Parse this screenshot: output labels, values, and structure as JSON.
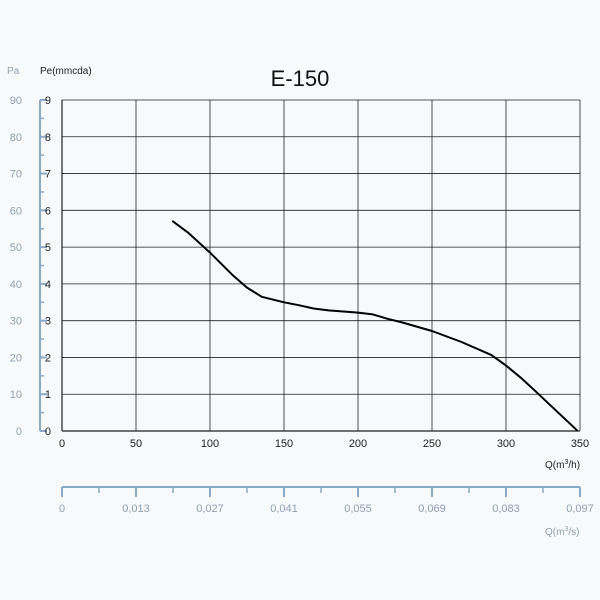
{
  "chart_data": {
    "type": "line",
    "title": "E-150",
    "y_axis_primary": {
      "label": "Pe(mmcda)",
      "ticks": [
        "0",
        "1",
        "2",
        "3",
        "4",
        "5",
        "6",
        "7",
        "8",
        "9"
      ],
      "range": [
        0,
        9
      ]
    },
    "y_axis_secondary": {
      "label": "Pa",
      "ticks": [
        "0",
        "10",
        "20",
        "30",
        "40",
        "50",
        "60",
        "70",
        "80",
        "90"
      ],
      "range": [
        0,
        90
      ]
    },
    "x_axis_primary": {
      "label_text": "Q(m",
      "label_sup": "3",
      "label_end": "/h)",
      "ticks": [
        "0",
        "50",
        "100",
        "150",
        "200",
        "250",
        "300",
        "350"
      ],
      "range": [
        0,
        350
      ]
    },
    "x_axis_secondary": {
      "label_text": "Q(m",
      "label_sup": "3",
      "label_end": "/s)",
      "ticks": [
        "0",
        "0,013",
        "0,027",
        "0,041",
        "0,055",
        "0,069",
        "0,083",
        "0,097"
      ],
      "range": [
        0,
        0.097
      ]
    },
    "grid": true,
    "series": [
      {
        "x": [
          75,
          85,
          100,
          115,
          125,
          135,
          150,
          160,
          170,
          180,
          190,
          200,
          210,
          220,
          230,
          250,
          270,
          290,
          300,
          310,
          320,
          330,
          340,
          348
        ],
        "y": [
          5.7,
          5.4,
          4.85,
          4.25,
          3.9,
          3.65,
          3.5,
          3.42,
          3.33,
          3.28,
          3.25,
          3.22,
          3.17,
          3.05,
          2.95,
          2.72,
          2.42,
          2.07,
          1.78,
          1.45,
          1.08,
          0.7,
          0.32,
          0.02
        ]
      }
    ],
    "colors": {
      "curve": "#000000",
      "grid": "#222222",
      "axis": "#222222",
      "secondary_axis": "#8aa8c8",
      "secondary_text": "#8fa0b4"
    }
  }
}
